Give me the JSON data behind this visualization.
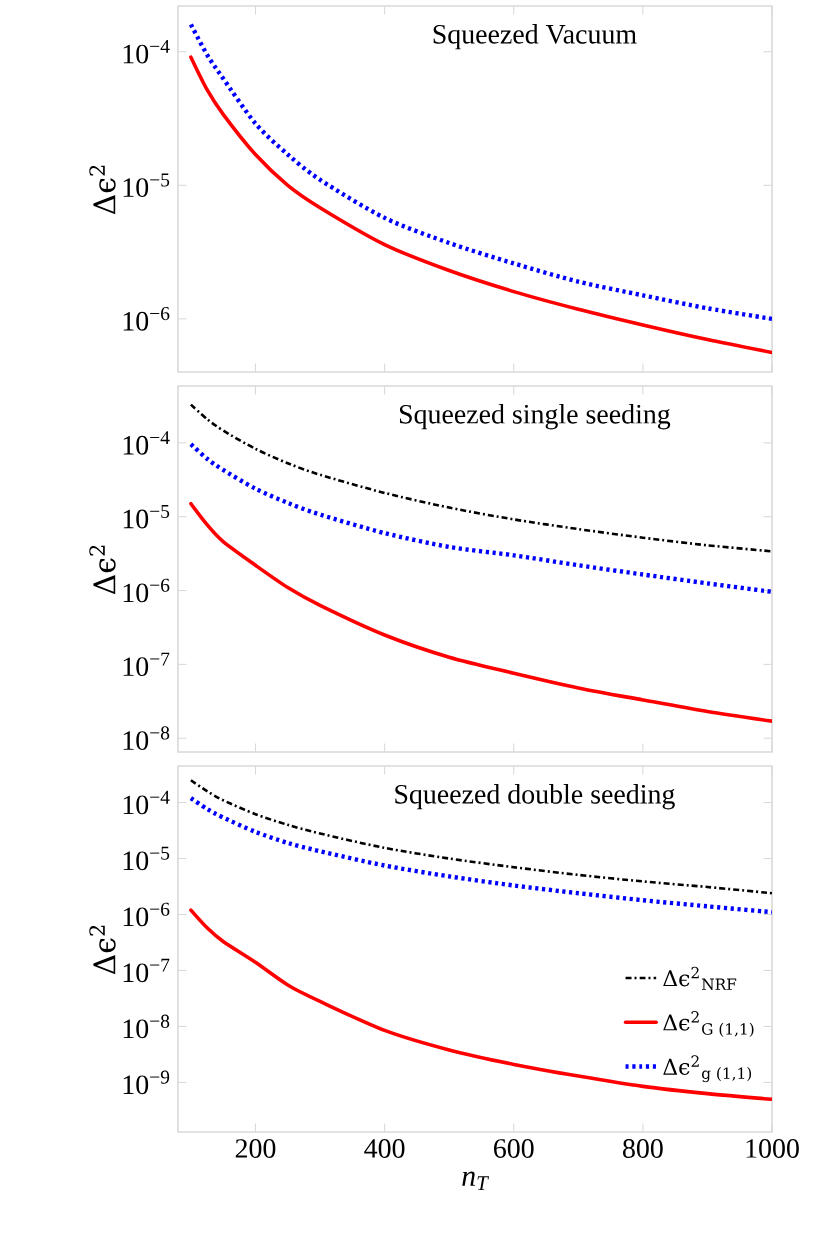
{
  "chart_data": [
    {
      "type": "line",
      "title": "Squeezed Vacuum",
      "ylabel": "Δϵ$^{2}$",
      "log": "y",
      "tick_labels": "y",
      "xlim": [
        80,
        1000
      ],
      "ylim": [
        4e-07,
        0.00022
      ],
      "xticks": [
        200,
        400,
        600,
        800,
        1000
      ],
      "yticks": [
        {
          "value": 0.0001,
          "label": "10$^{−4}$"
        },
        {
          "value": 1e-05,
          "label": "10$^{−5}$"
        },
        {
          "value": 1e-06,
          "label": "10$^{−6}$"
        }
      ],
      "x": [
        100,
        125,
        150,
        200,
        250,
        300,
        400,
        500,
        600,
        700,
        800,
        900,
        1000
      ],
      "series": [
        {
          "color": "#ff0000",
          "line_style": "solid",
          "values": [
            9.1e-05,
            5.2e-05,
            3.4e-05,
            1.7e-05,
            1e-05,
            6.8e-06,
            3.6e-06,
            2.3e-06,
            1.6e-06,
            1.18e-06,
            9e-07,
            7e-07,
            5.6e-07
          ]
        },
        {
          "color": "#0000ff",
          "line_style": "dotted",
          "values": [
            0.00016,
            9.5e-05,
            6.3e-05,
            2.9e-05,
            1.7e-05,
            1.1e-05,
            5.7e-06,
            3.7e-06,
            2.6e-06,
            1.9e-06,
            1.5e-06,
            1.2e-06,
            1e-06
          ]
        }
      ]
    },
    {
      "type": "line",
      "title": "Squeezed single seeding",
      "ylabel": "Δϵ$^{2}$",
      "log": "y",
      "tick_labels": "y",
      "xlim": [
        80,
        1000
      ],
      "ylim": [
        6.5e-09,
        0.00059
      ],
      "xticks": [
        200,
        400,
        600,
        800,
        1000
      ],
      "yticks": [
        {
          "value": 0.0001,
          "label": "10$^{−4}$"
        },
        {
          "value": 1e-05,
          "label": "10$^{−5}$"
        },
        {
          "value": 1e-06,
          "label": "10$^{−6}$"
        },
        {
          "value": 1e-07,
          "label": "10$^{−7}$"
        },
        {
          "value": 1e-08,
          "label": "10$^{−8}$"
        }
      ],
      "x": [
        100,
        125,
        150,
        200,
        250,
        300,
        400,
        500,
        600,
        700,
        800,
        900,
        1000
      ],
      "series": [
        {
          "color": "#000000",
          "line_style": "dashdotted",
          "values": [
            0.00033,
            0.00021,
            0.000147,
            8.3e-05,
            5.3e-05,
            3.7e-05,
            2.1e-05,
            1.33e-05,
            9.2e-06,
            6.8e-06,
            5.2e-06,
            4.1e-06,
            3.4e-06
          ]
        },
        {
          "color": "#ff0000",
          "line_style": "solid",
          "values": [
            1.5e-05,
            7.8e-06,
            4.6e-06,
            2.2e-06,
            1.1e-06,
            6.3e-07,
            2.5e-07,
            1.25e-07,
            7.6e-08,
            4.8e-08,
            3.3e-08,
            2.3e-08,
            1.7e-08
          ]
        },
        {
          "color": "#0000ff",
          "line_style": "dotted",
          "values": [
            9.6e-05,
            6.1e-05,
            4.3e-05,
            2.4e-05,
            1.54e-05,
            1.07e-05,
            6e-06,
            3.9e-06,
            3e-06,
            2.2e-06,
            1.65e-06,
            1.25e-06,
            9.6e-07
          ]
        }
      ]
    },
    {
      "type": "line",
      "title": "Squeezed double seeding",
      "ylabel": "Δϵ$^{2}$",
      "xlabel": "n$_{T}$",
      "log": "y",
      "legend": "right",
      "xlim": [
        80,
        1000
      ],
      "ylim": [
        1.3e-10,
        0.00045
      ],
      "xticks": [
        200,
        400,
        600,
        800,
        1000
      ],
      "yticks": [
        {
          "value": 0.0001,
          "label": "10$^{−4}$"
        },
        {
          "value": 1e-05,
          "label": "10$^{−5}$"
        },
        {
          "value": 1e-06,
          "label": "10$^{−6}$"
        },
        {
          "value": 1e-07,
          "label": "10$^{−7}$"
        },
        {
          "value": 1e-08,
          "label": "10$^{−8}$"
        },
        {
          "value": 1e-09,
          "label": "10$^{−9}$"
        }
      ],
      "x": [
        100,
        125,
        150,
        200,
        250,
        300,
        400,
        500,
        600,
        700,
        800,
        900,
        1000
      ],
      "series": [
        {
          "name": "Δϵ$^{2}$$_{NRF}$",
          "color": "#000000",
          "line_style": "dashdotted",
          "values": [
            0.00025,
            0.00016,
            0.00011,
            6.2e-05,
            4e-05,
            2.8e-05,
            1.55e-05,
            1e-05,
            7e-06,
            5.1e-06,
            3.9e-06,
            3.1e-06,
            2.4e-06
          ]
        },
        {
          "name": "Δϵ$^{2}$$_{G (1,1)}$",
          "color": "#ff0000",
          "line_style": "solid",
          "values": [
            1.2e-06,
            5.8e-07,
            3.3e-07,
            1.4e-07,
            5.5e-08,
            2.8e-08,
            8.5e-09,
            3.8e-09,
            2.1e-09,
            1.3e-09,
            8.5e-10,
            6.3e-10,
            5e-10
          ]
        },
        {
          "name": "Δϵ$^{2}$$_{g (1,1)}$",
          "color": "#0000ff",
          "line_style": "dotted",
          "values": [
            0.00012,
            7.7e-05,
            5.4e-05,
            3e-05,
            1.9e-05,
            1.35e-05,
            7.5e-06,
            4.8e-06,
            3.3e-06,
            2.4e-06,
            1.8e-06,
            1.4e-06,
            1.1e-06
          ]
        }
      ]
    }
  ]
}
